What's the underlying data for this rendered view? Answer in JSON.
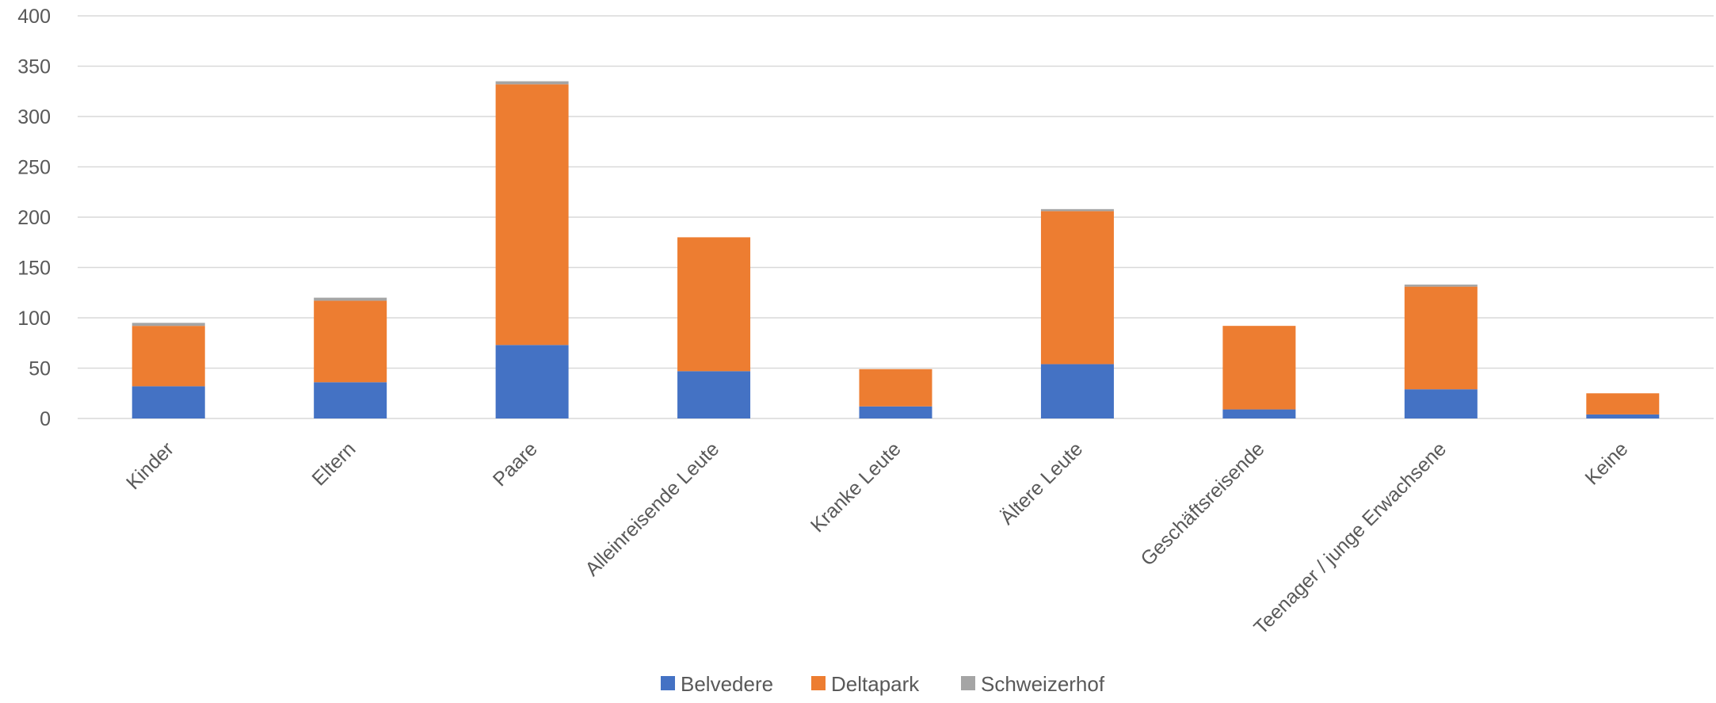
{
  "chart_data": {
    "type": "bar",
    "stacked": true,
    "categories": [
      "Kinder",
      "Eltern",
      "Paare",
      "Alleinreisende Leute",
      "Kranke Leute",
      "Ältere Leute",
      "Geschäftsreisende",
      "Teenager / junge Erwachsene",
      "Keine"
    ],
    "series": [
      {
        "name": "Belvedere",
        "color": "#4472c4",
        "values": [
          32,
          36,
          73,
          47,
          12,
          54,
          9,
          29,
          4
        ]
      },
      {
        "name": "Deltapark",
        "color": "#ed7d31",
        "values": [
          60,
          81,
          259,
          133,
          37,
          152,
          83,
          102,
          21
        ]
      },
      {
        "name": "Schweizerhof",
        "color": "#a5a5a5",
        "values": [
          3,
          3,
          3,
          0,
          0,
          2,
          0,
          2,
          0
        ]
      }
    ],
    "yticks": [
      "0",
      "50",
      "100",
      "150",
      "200",
      "250",
      "300",
      "350",
      "400"
    ],
    "ylim": [
      0,
      400
    ],
    "grid": true,
    "legend": "bottom-center",
    "title": "",
    "xlabel": "",
    "ylabel": ""
  }
}
